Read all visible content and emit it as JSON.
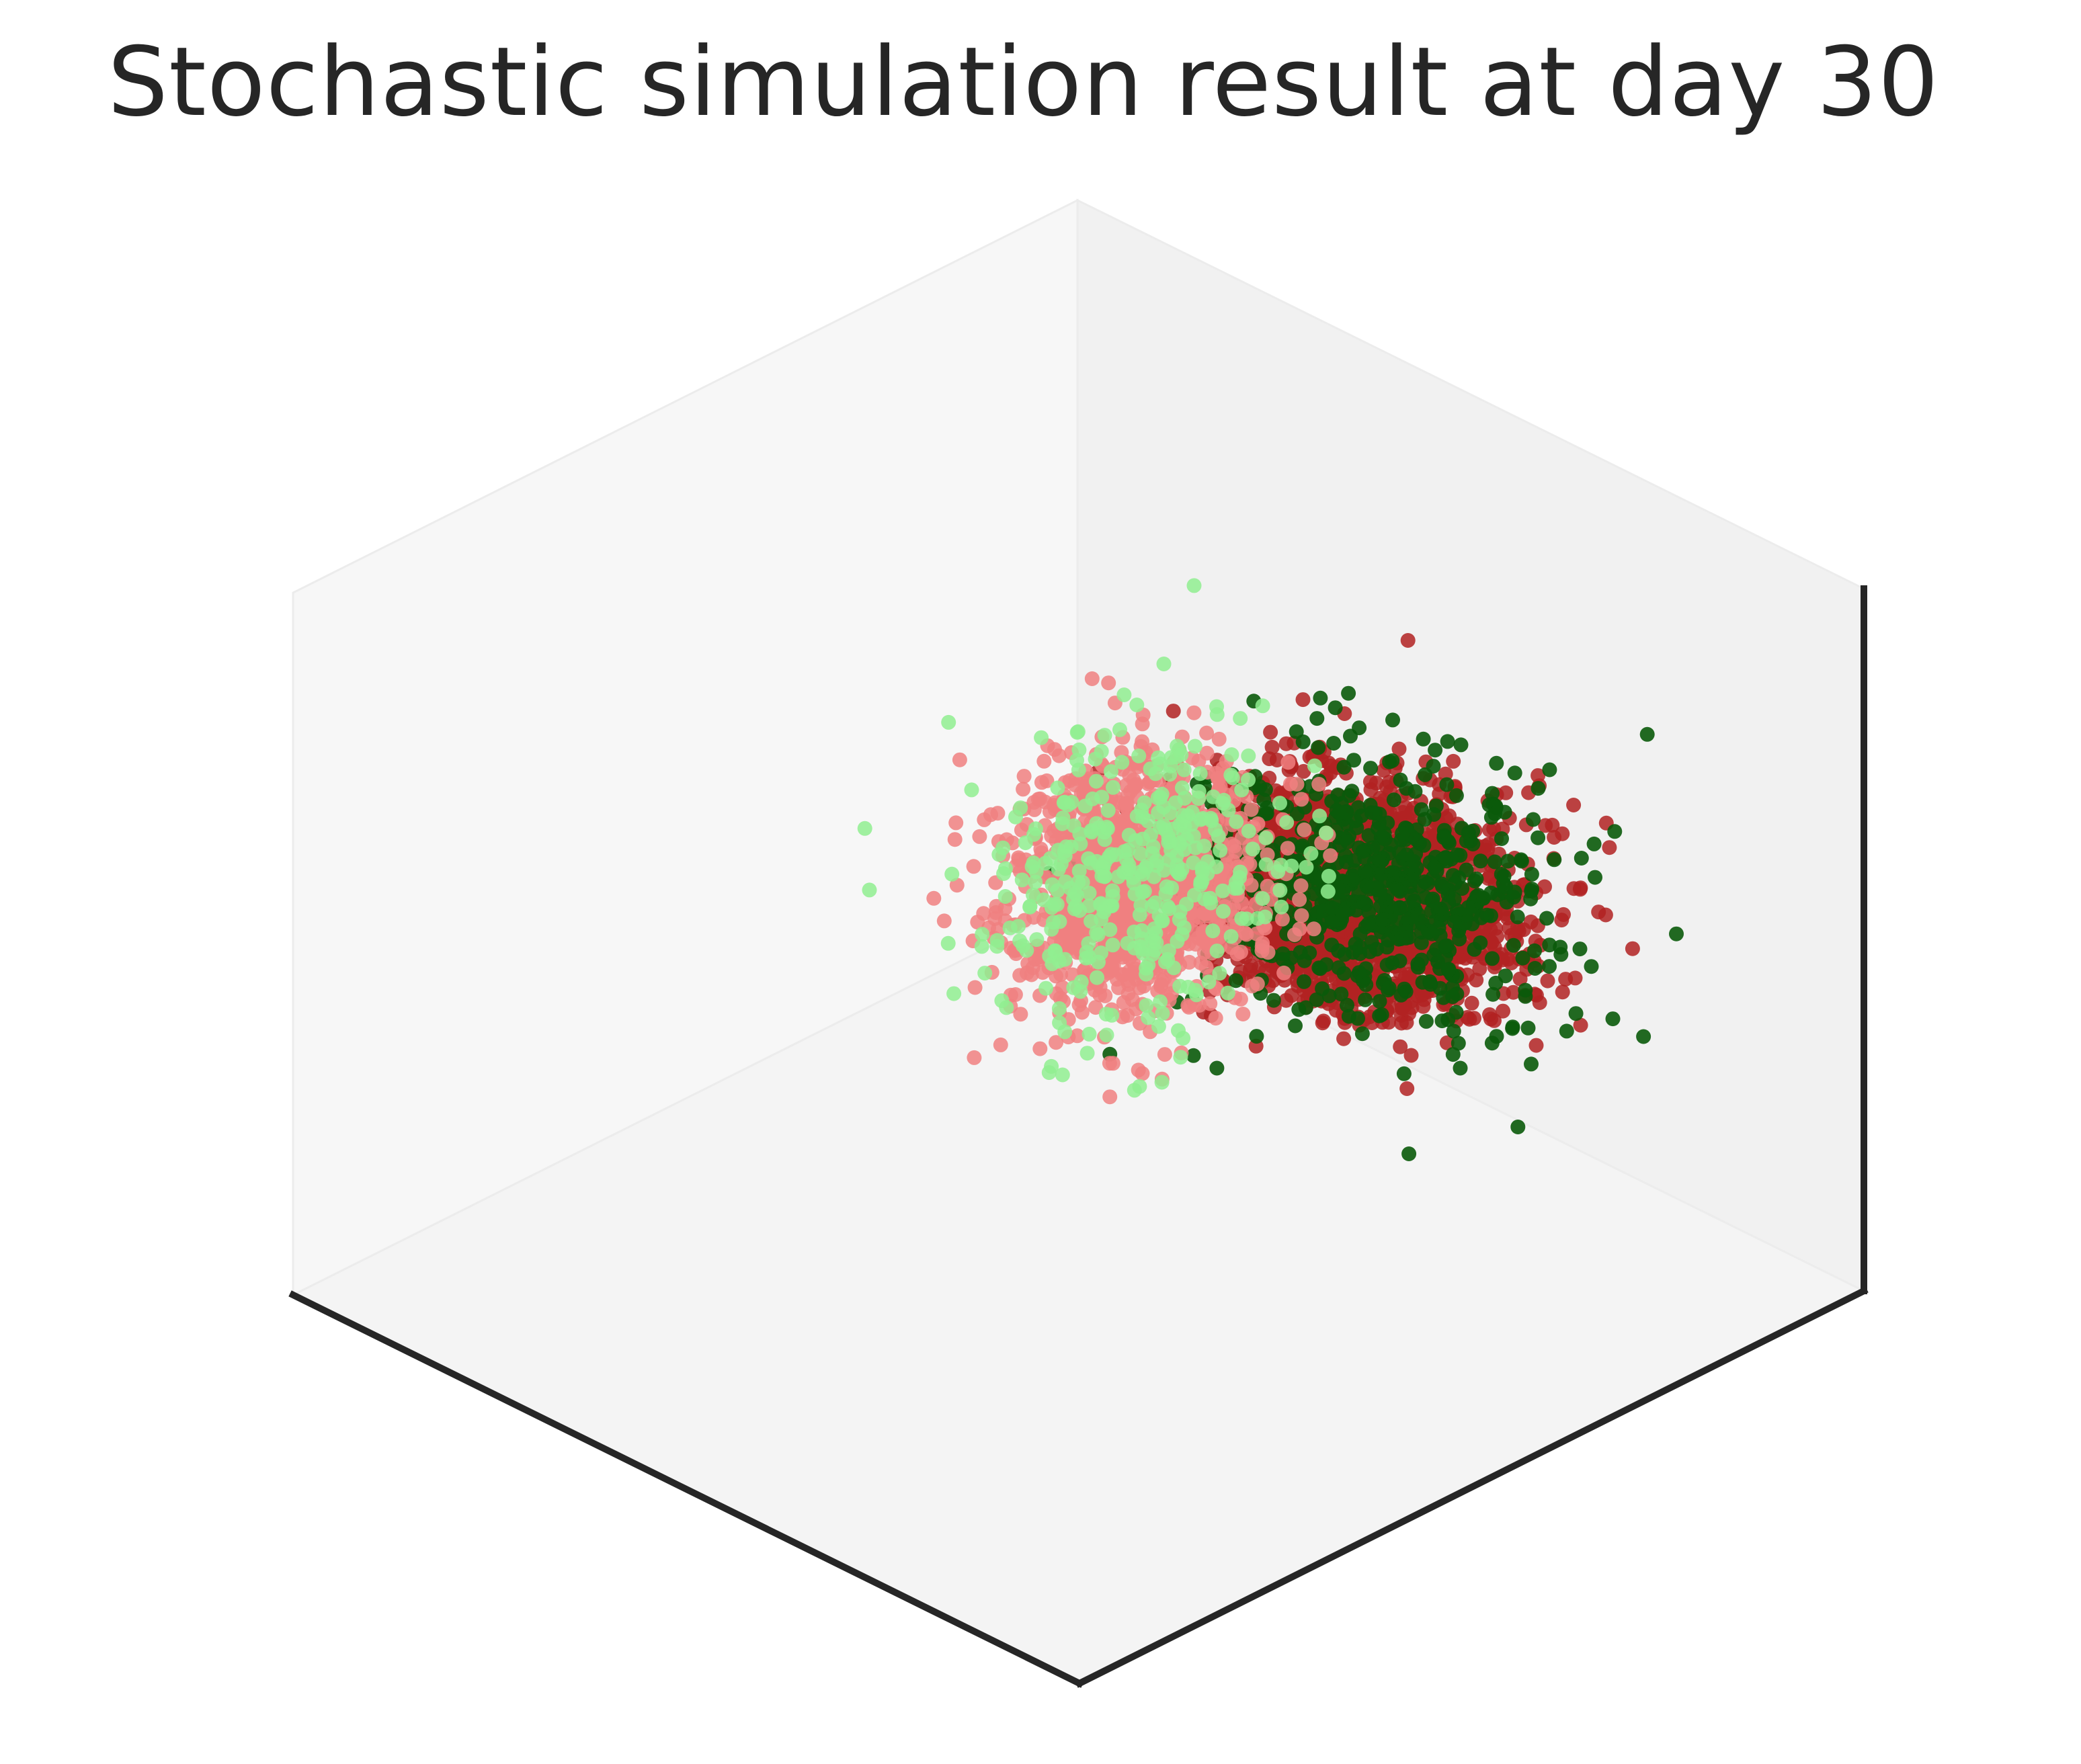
{
  "chart_data": {
    "type": "scatter",
    "projection": "3d",
    "title": "Stochastic simulation result at day 30",
    "xlabel": "",
    "ylabel": "",
    "zlabel": "",
    "grid": false,
    "tick_labels": false,
    "pane_color": "#f2f2f2",
    "axis_line_color": "#262626",
    "xlim": [
      -10,
      10
    ],
    "ylim": [
      -10,
      10
    ],
    "zlim": [
      -10,
      10
    ],
    "view": {
      "elev": 20,
      "azim": -45
    },
    "series": [
      {
        "color": "#b22222",
        "opacity": 0.85,
        "count": 2600,
        "distribution": "gaussian",
        "center": [
          2.0,
          -5.0,
          3.0
        ],
        "spread": [
          1.4,
          1.4,
          1.3
        ],
        "x_trend": -0.3
      },
      {
        "color": "#0a5a0a",
        "opacity": 0.9,
        "count": 650,
        "distribution": "gaussian",
        "center": [
          2.2,
          -5.2,
          3.1
        ],
        "spread": [
          1.7,
          1.7,
          1.6
        ],
        "x_trend": -0.3
      },
      {
        "color": "#f08080",
        "opacity": 0.85,
        "count": 1250,
        "distribution": "gaussian",
        "center": [
          4.5,
          3.0,
          -2.5
        ],
        "spread": [
          1.1,
          1.2,
          1.5
        ],
        "x_trend": 0.2
      },
      {
        "color": "#90ee90",
        "opacity": 0.85,
        "count": 380,
        "distribution": "gaussian",
        "center": [
          4.5,
          3.0,
          -2.3
        ],
        "spread": [
          1.4,
          1.4,
          1.8
        ],
        "x_trend": 0.2
      }
    ]
  }
}
